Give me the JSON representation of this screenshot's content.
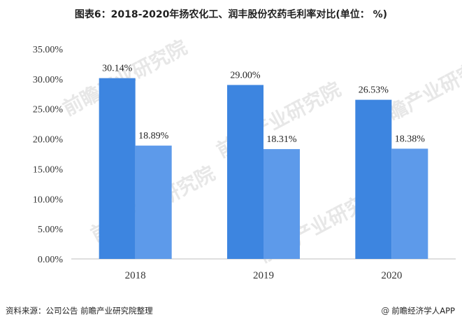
{
  "title": "图表6：2018-2020年扬农化工、润丰股份农药毛利率对比(单位： %)",
  "source": "资料来源：公司公告 前瞻产业研究院整理",
  "brand": {
    "icon": "at-icon",
    "text": "前瞻经济学人APP"
  },
  "watermark": "前瞻产业研究院",
  "colors": {
    "series1": "#3d85e0",
    "series2": "#5d9aea",
    "axis": "#bfbfbf"
  },
  "chart_data": {
    "type": "bar",
    "categories": [
      "2018",
      "2019",
      "2020"
    ],
    "series": [
      {
        "values": [
          30.14,
          29.0,
          26.53
        ],
        "labels": [
          "30.14%",
          "29.00%",
          "26.53%"
        ]
      },
      {
        "values": [
          18.89,
          18.31,
          18.38
        ],
        "labels": [
          "18.89%",
          "18.31%",
          "18.38%"
        ]
      }
    ],
    "ylim": [
      0,
      35
    ],
    "yticks": [
      0,
      5,
      10,
      15,
      20,
      25,
      30,
      35
    ],
    "ytick_labels": [
      "0.00%",
      "5.00%",
      "10.00%",
      "15.00%",
      "20.00%",
      "25.00%",
      "30.00%",
      "35.00%"
    ],
    "grid": false,
    "legend": "none"
  }
}
